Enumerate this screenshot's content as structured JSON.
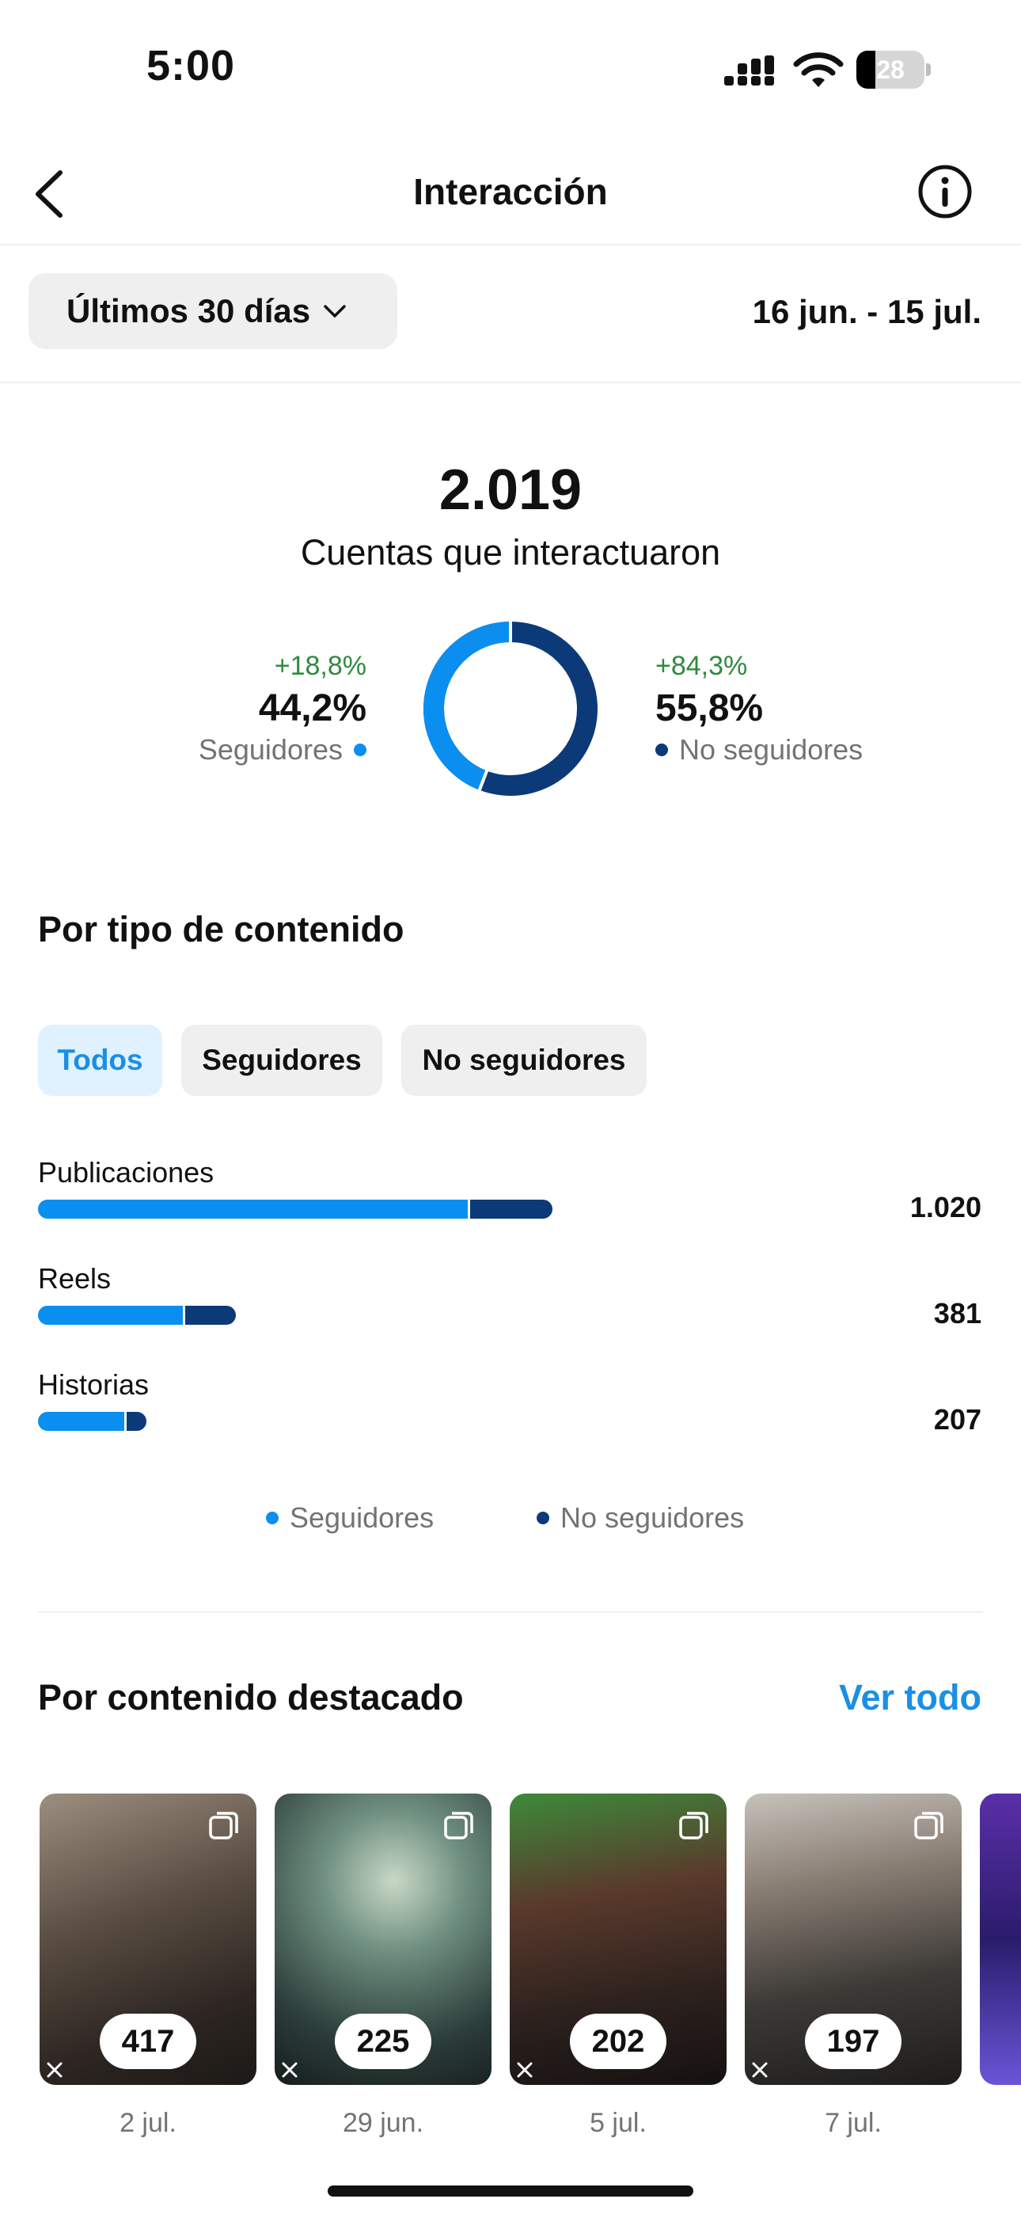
{
  "status_bar": {
    "time": "5:00",
    "battery": "28",
    "battery_level": 0.28
  },
  "header": {
    "title": "Interacción"
  },
  "filter": {
    "period_label": "Últimos 30 días",
    "date_range": "16 jun. - 15 jul."
  },
  "summary": {
    "total": "2.019",
    "total_label": "Cuentas que interactuaron",
    "followers": {
      "delta": "+18,8%",
      "pct": "44,2%",
      "label": "Seguidores",
      "share": 0.442
    },
    "non_followers": {
      "delta": "+84,3%",
      "pct": "55,8%",
      "label": "No seguidores",
      "share": 0.558
    }
  },
  "content_type": {
    "title": "Por tipo de contenido",
    "tabs": [
      {
        "label": "Todos",
        "active": true
      },
      {
        "label": "Seguidores",
        "active": false
      },
      {
        "label": "No seguidores",
        "active": false
      }
    ],
    "rows": [
      {
        "label": "Publicaciones",
        "value": "1.020",
        "followers_fraction": 0.84,
        "total_fraction": 1.0
      },
      {
        "label": "Reels",
        "value": "381",
        "followers_fraction": 0.74,
        "total_fraction": 0.385
      },
      {
        "label": "Historias",
        "value": "207",
        "followers_fraction": 0.82,
        "total_fraction": 0.21
      }
    ],
    "legend": {
      "followers": "Seguidores",
      "non_followers": "No seguidores"
    }
  },
  "featured": {
    "title": "Por contenido destacado",
    "see_all": "Ver todo",
    "items": [
      {
        "count": "417",
        "date": "2 jul."
      },
      {
        "count": "225",
        "date": "29 jun."
      },
      {
        "count": "202",
        "date": "5 jul."
      },
      {
        "count": "197",
        "date": "7 jul."
      }
    ]
  },
  "colors": {
    "followers": "#0a8ff0",
    "non_followers": "#0c3a78",
    "accent": "#1a8fe6",
    "positive": "#2e8b3d"
  }
}
